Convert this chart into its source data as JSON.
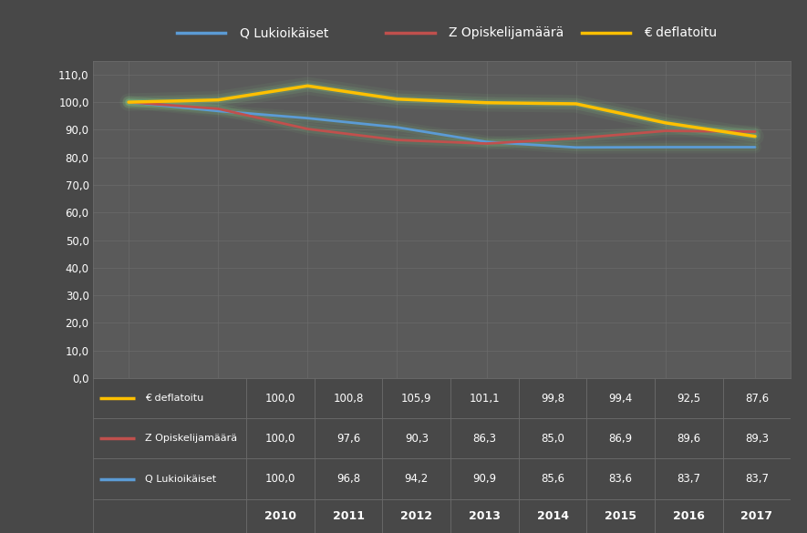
{
  "years": [
    2010,
    2011,
    2012,
    2013,
    2014,
    2015,
    2016,
    2017
  ],
  "series": [
    {
      "key": "Q Lukioikaiset",
      "values": [
        100.0,
        96.8,
        94.2,
        90.9,
        85.6,
        83.6,
        83.7,
        83.7
      ],
      "color": "#5B9BD5",
      "label": "Q Lukioikäiset",
      "linewidth": 2.0
    },
    {
      "key": "Z Opiskelijamaara",
      "values": [
        100.0,
        97.6,
        90.3,
        86.3,
        85.0,
        86.9,
        89.6,
        89.3
      ],
      "color": "#C0504D",
      "label": "Z Opiskelijamäärä",
      "linewidth": 2.0
    },
    {
      "key": "EUR deflatoitu",
      "values": [
        100.0,
        100.8,
        105.9,
        101.1,
        99.8,
        99.4,
        92.5,
        87.6
      ],
      "color": "#FFC000",
      "label": "€ deflatoitu",
      "linewidth": 2.5
    }
  ],
  "ylim": [
    0,
    115
  ],
  "yticks": [
    0,
    10,
    20,
    30,
    40,
    50,
    60,
    70,
    80,
    90,
    100,
    110
  ],
  "ytick_labels": [
    "0,0",
    "10,0",
    "20,0",
    "30,0",
    "40,0",
    "50,0",
    "60,0",
    "70,0",
    "80,0",
    "90,0",
    "100,0",
    "110,0"
  ],
  "background_color": "#484848",
  "plot_bg_color": "#5A5A5A",
  "grid_color": "#6E6E6E",
  "text_color": "#FFFFFF",
  "table_data": [
    [
      100.0,
      96.8,
      94.2,
      90.9,
      85.6,
      83.6,
      83.7,
      83.7
    ],
    [
      100.0,
      97.6,
      90.3,
      86.3,
      85.0,
      86.9,
      89.6,
      89.3
    ],
    [
      100.0,
      100.8,
      105.9,
      101.1,
      99.8,
      99.4,
      92.5,
      87.6
    ]
  ],
  "table_row_labels": [
    "Q Lukioikäiset",
    "Z Opiskelijamäärä",
    "€ deflatoitu"
  ],
  "table_row_colors": [
    "#5B9BD5",
    "#C0504D",
    "#FFC000"
  ],
  "glow_color": "#90EE90"
}
